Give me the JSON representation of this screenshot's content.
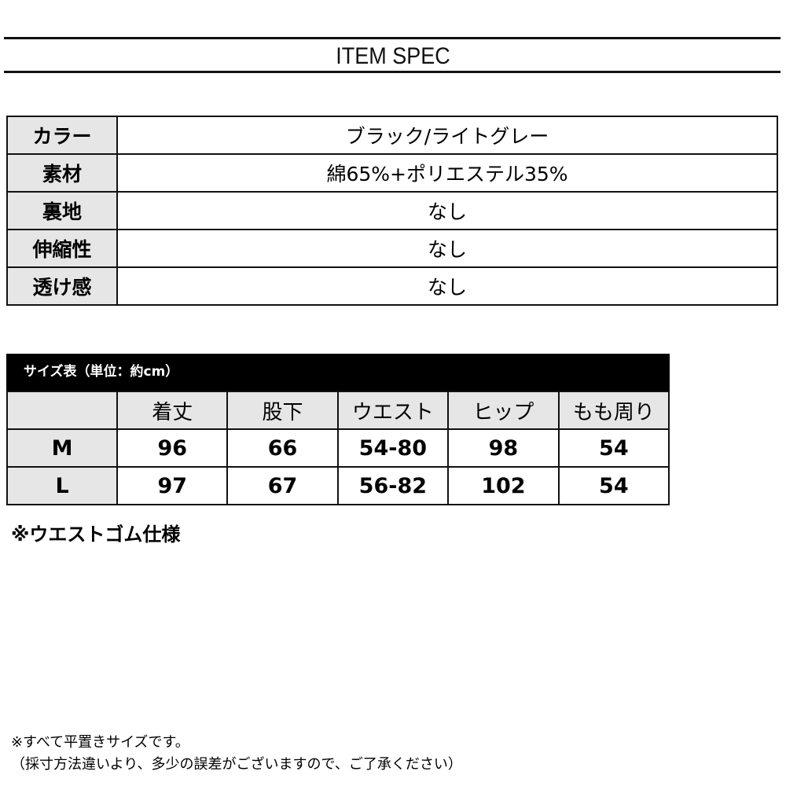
{
  "title": "ITEM SPEC",
  "spec": [
    {
      "label": "カラー",
      "value": "ブラック/ライトグレー"
    },
    {
      "label": "素材",
      "value": "綿65%+ポリエステル35%"
    },
    {
      "label": "裏地",
      "value": "なし"
    },
    {
      "label": "伸縮性",
      "value": "なし"
    },
    {
      "label": "透け感",
      "value": "なし"
    }
  ],
  "size_table": {
    "caption": "サイズ表（単位：約cm）",
    "headers": [
      "",
      "着丈",
      "股下",
      "ウエスト",
      "ヒップ",
      "もも周り"
    ],
    "rows": [
      [
        "M",
        "96",
        "66",
        "54-80",
        "98",
        "54"
      ],
      [
        "L",
        "97",
        "67",
        "56-82",
        "102",
        "54"
      ]
    ],
    "note": "※ウエストゴム仕様"
  },
  "footer": {
    "line1": "※すべて平置きサイズです。",
    "line2": "（採寸方法違いより、多少の誤差がございますので、ご了承ください）"
  }
}
